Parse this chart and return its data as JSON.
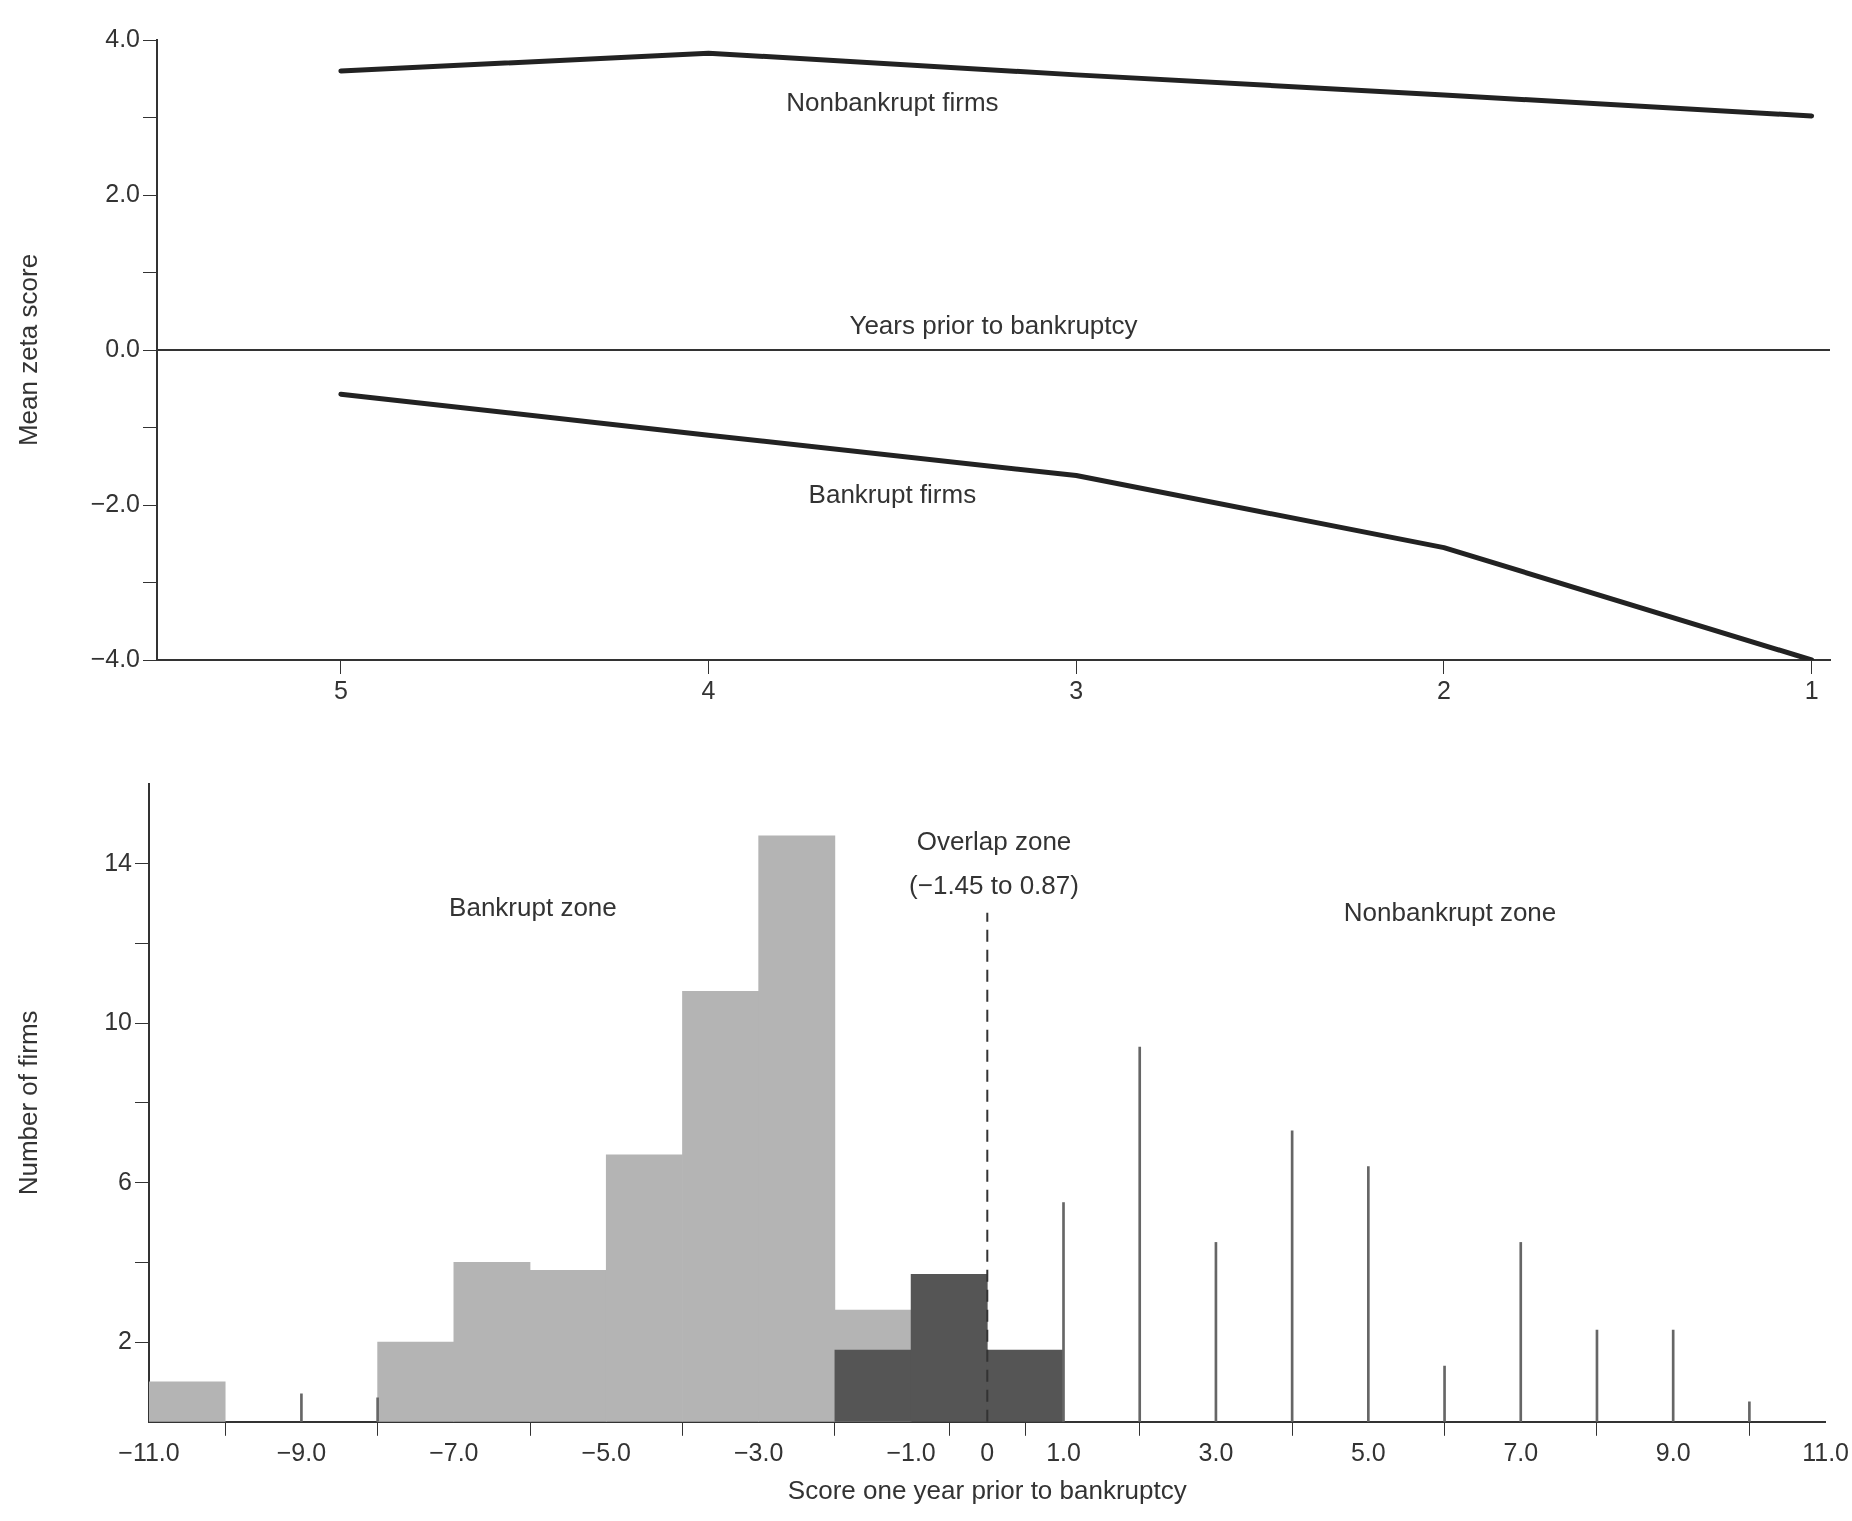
{
  "chart_data": [
    {
      "type": "line",
      "x": [
        5,
        4,
        3,
        2,
        1
      ],
      "ylabel": "Mean zeta score",
      "series": [
        {
          "name": "Nonbankrupt firms",
          "color": "#222222",
          "values": [
            3.6,
            3.83,
            3.55,
            3.29,
            3.02
          ]
        },
        {
          "name": "Bankrupt firms",
          "color": "#222222",
          "values": [
            -0.57,
            -1.1,
            -1.62,
            -2.55,
            -4.0
          ]
        }
      ],
      "xlim": [
        5.5,
        0.95
      ],
      "xticks": [
        5,
        4,
        3,
        2,
        1
      ],
      "ylim": [
        -4,
        4
      ],
      "yticks": [
        {
          "value": -4,
          "label": "−4.0"
        },
        {
          "value": -3,
          "label": null
        },
        {
          "value": -2,
          "label": "−2.0"
        },
        {
          "value": -1,
          "label": null
        },
        {
          "value": 0,
          "label": "0.0"
        },
        {
          "value": 1,
          "label": null
        },
        {
          "value": 2,
          "label": "2.0"
        },
        {
          "value": 3,
          "label": null
        },
        {
          "value": 4,
          "label": "4.0"
        }
      ],
      "ref_lines": [
        {
          "axis": "y",
          "value": 0,
          "label": "Years prior to bankruptcy",
          "color": "#333333",
          "line_style": "solid"
        }
      ],
      "grid": false,
      "legend": false
    },
    {
      "type": "histogram",
      "xlabel": "Score one year prior to bankruptcy",
      "ylabel": "Number of firms",
      "bins": [
        -11,
        -10,
        -9,
        -8,
        -7,
        -6,
        -5,
        -4,
        -3,
        -2,
        -1,
        0,
        1,
        2,
        3,
        4,
        5,
        6,
        7,
        8,
        9,
        10,
        11
      ],
      "series": [
        {
          "color": "#b4b4b4",
          "values": [
            1,
            null,
            null,
            2,
            4,
            3.8,
            6.7,
            10.8,
            14.7,
            2.8,
            null,
            null,
            null,
            null,
            null,
            null,
            null,
            null,
            null,
            null,
            null,
            null
          ]
        },
        {
          "color": "#555555",
          "values": [
            null,
            null,
            null,
            null,
            null,
            null,
            null,
            null,
            null,
            1.8,
            3.7,
            1.8,
            null,
            null,
            null,
            null,
            null,
            null,
            null,
            null,
            null,
            null
          ]
        },
        {
          "type": "bar",
          "color": "#666666",
          "x": [
            -9,
            -8,
            1,
            2,
            3,
            4,
            5,
            6,
            7,
            8,
            9,
            10
          ],
          "values": [
            0.7,
            0.6,
            5.5,
            9.4,
            4.5,
            7.3,
            6.4,
            1.4,
            4.5,
            2.3,
            2.3,
            0.5
          ]
        }
      ],
      "xlim": [
        -11,
        11
      ],
      "xticks": [
        {
          "value": -11,
          "label": "−11.0"
        },
        {
          "value": -9,
          "label": "−9.0"
        },
        {
          "value": -7,
          "label": "−7.0"
        },
        {
          "value": -5,
          "label": "−5.0"
        },
        {
          "value": -3,
          "label": "−3.0"
        },
        {
          "value": -1,
          "label": "−1.0"
        },
        0,
        {
          "value": 1,
          "label": "1.0"
        },
        {
          "value": 3,
          "label": "3.0"
        },
        {
          "value": 5,
          "label": "5.0"
        },
        {
          "value": 7,
          "label": "7.0"
        },
        {
          "value": 9,
          "label": "9.0"
        },
        {
          "value": 11,
          "label": "11.0"
        }
      ],
      "ylim": [
        0,
        16
      ],
      "yticks": [
        2,
        {
          "value": 4,
          "label": null
        },
        6,
        {
          "value": 8,
          "label": null
        },
        10,
        {
          "value": 12,
          "label": null
        },
        14
      ],
      "ref_lines": [
        {
          "axis": "x",
          "value": 0,
          "color": "#333333",
          "line_style": "dashed"
        }
      ],
      "annotations": [
        "Bankrupt zone",
        "Overlap zone\n(−1.45 to 0.87)",
        "Nonbankrupt zone"
      ],
      "grid": false,
      "legend": false
    }
  ]
}
